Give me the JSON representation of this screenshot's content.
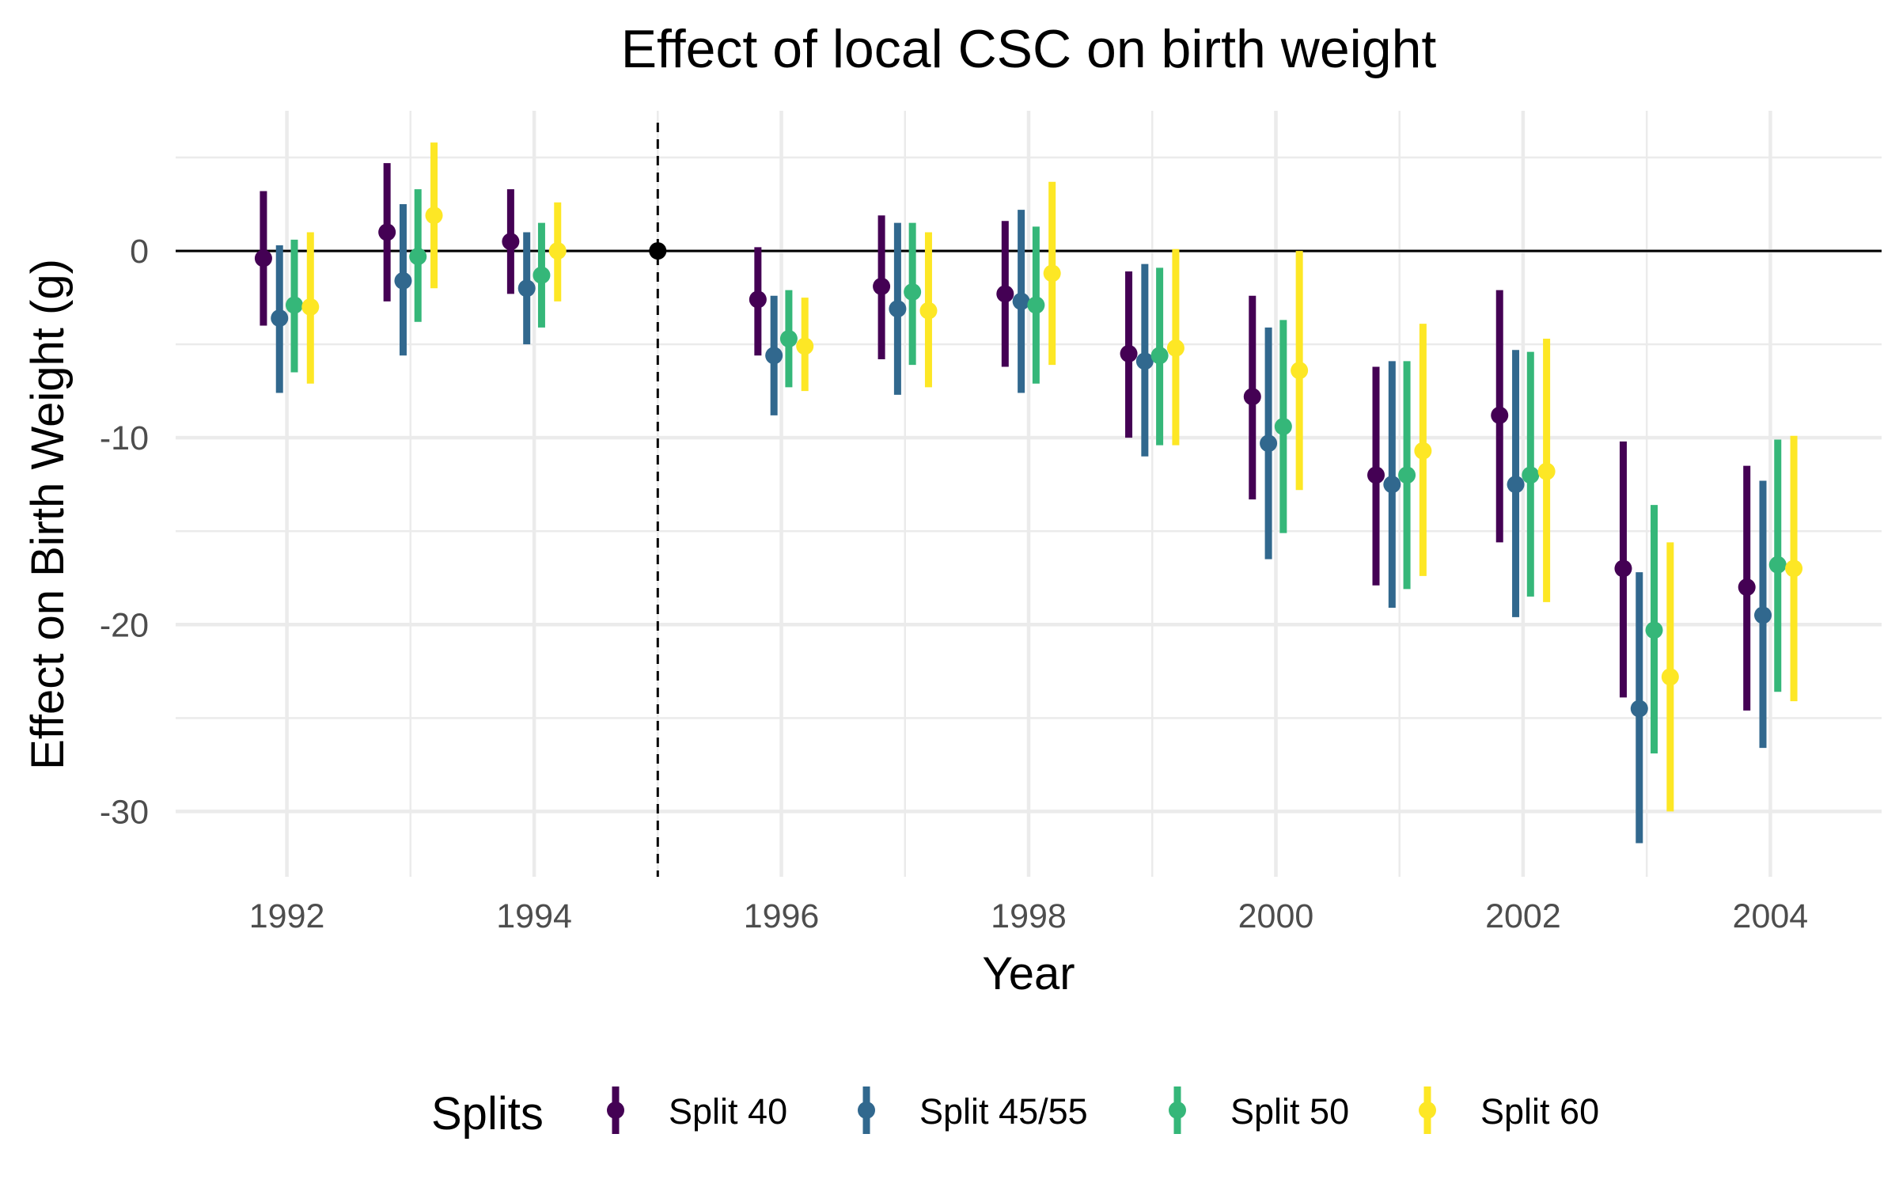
{
  "chart_data": {
    "type": "scatter",
    "title": "Effect of local CSC on birth weight",
    "xlabel": "Year",
    "ylabel": "Effect on Birth Weight (g)",
    "xlim": [
      1991.1,
      2004.9
    ],
    "ylim": [
      -33.5,
      7.5
    ],
    "x_ticks": [
      1992,
      1994,
      1996,
      1998,
      2000,
      2002,
      2004
    ],
    "x_tick_labels": [
      "1992",
      "1994",
      "1996",
      "1998",
      "2000",
      "2002",
      "2004"
    ],
    "y_ticks": [
      -30,
      -20,
      -10,
      0
    ],
    "y_tick_labels": [
      "-30",
      "-20",
      "-10",
      "0"
    ],
    "grid": true,
    "reference_hline": 0,
    "reference_vline": 1995,
    "reference_point": {
      "x": 1995,
      "y": 0
    },
    "legend": {
      "title": "Splits",
      "position": "bottom"
    },
    "series": [
      {
        "name": "Split 40",
        "color": "#440154",
        "offset": -0.19,
        "points": [
          {
            "x": 1992,
            "y": -0.4,
            "lo": -4.0,
            "hi": 3.2
          },
          {
            "x": 1993,
            "y": 1.0,
            "lo": -2.7,
            "hi": 4.7
          },
          {
            "x": 1994,
            "y": 0.5,
            "lo": -2.3,
            "hi": 3.3
          },
          {
            "x": 1996,
            "y": -2.6,
            "lo": -5.6,
            "hi": 0.2
          },
          {
            "x": 1997,
            "y": -1.9,
            "lo": -5.8,
            "hi": 1.9
          },
          {
            "x": 1998,
            "y": -2.3,
            "lo": -6.2,
            "hi": 1.6
          },
          {
            "x": 1999,
            "y": -5.5,
            "lo": -10.0,
            "hi": -1.1
          },
          {
            "x": 2000,
            "y": -7.8,
            "lo": -13.3,
            "hi": -2.4
          },
          {
            "x": 2001,
            "y": -12.0,
            "lo": -17.9,
            "hi": -6.2
          },
          {
            "x": 2002,
            "y": -8.8,
            "lo": -15.6,
            "hi": -2.1
          },
          {
            "x": 2003,
            "y": -17.0,
            "lo": -23.9,
            "hi": -10.2
          },
          {
            "x": 2004,
            "y": -18.0,
            "lo": -24.6,
            "hi": -11.5
          }
        ]
      },
      {
        "name": "Split 45/55",
        "color": "#31688e",
        "offset": -0.06,
        "points": [
          {
            "x": 1992,
            "y": -3.6,
            "lo": -7.6,
            "hi": 0.3
          },
          {
            "x": 1993,
            "y": -1.6,
            "lo": -5.6,
            "hi": 2.5
          },
          {
            "x": 1994,
            "y": -2.0,
            "lo": -5.0,
            "hi": 1.0
          },
          {
            "x": 1996,
            "y": -5.6,
            "lo": -8.8,
            "hi": -2.4
          },
          {
            "x": 1997,
            "y": -3.1,
            "lo": -7.7,
            "hi": 1.5
          },
          {
            "x": 1998,
            "y": -2.7,
            "lo": -7.6,
            "hi": 2.2
          },
          {
            "x": 1999,
            "y": -5.9,
            "lo": -11.0,
            "hi": -0.7
          },
          {
            "x": 2000,
            "y": -10.3,
            "lo": -16.5,
            "hi": -4.1
          },
          {
            "x": 2001,
            "y": -12.5,
            "lo": -19.1,
            "hi": -5.9
          },
          {
            "x": 2002,
            "y": -12.5,
            "lo": -19.6,
            "hi": -5.3
          },
          {
            "x": 2003,
            "y": -24.5,
            "lo": -31.7,
            "hi": -17.2
          },
          {
            "x": 2004,
            "y": -19.5,
            "lo": -26.6,
            "hi": -12.3
          }
        ]
      },
      {
        "name": "Split 50",
        "color": "#35b779",
        "offset": 0.06,
        "points": [
          {
            "x": 1992,
            "y": -2.9,
            "lo": -6.5,
            "hi": 0.6
          },
          {
            "x": 1993,
            "y": -0.3,
            "lo": -3.8,
            "hi": 3.3
          },
          {
            "x": 1994,
            "y": -1.3,
            "lo": -4.1,
            "hi": 1.5
          },
          {
            "x": 1996,
            "y": -4.7,
            "lo": -7.3,
            "hi": -2.1
          },
          {
            "x": 1997,
            "y": -2.2,
            "lo": -6.1,
            "hi": 1.5
          },
          {
            "x": 1998,
            "y": -2.9,
            "lo": -7.1,
            "hi": 1.3
          },
          {
            "x": 1999,
            "y": -5.6,
            "lo": -10.4,
            "hi": -0.9
          },
          {
            "x": 2000,
            "y": -9.4,
            "lo": -15.1,
            "hi": -3.7
          },
          {
            "x": 2001,
            "y": -12.0,
            "lo": -18.1,
            "hi": -5.9
          },
          {
            "x": 2002,
            "y": -12.0,
            "lo": -18.5,
            "hi": -5.4
          },
          {
            "x": 2003,
            "y": -20.3,
            "lo": -26.9,
            "hi": -13.6
          },
          {
            "x": 2004,
            "y": -16.8,
            "lo": -23.6,
            "hi": -10.1
          }
        ]
      },
      {
        "name": "Split 60",
        "color": "#fde725",
        "offset": 0.19,
        "points": [
          {
            "x": 1992,
            "y": -3.0,
            "lo": -7.1,
            "hi": 1.0
          },
          {
            "x": 1993,
            "y": 1.9,
            "lo": -2.0,
            "hi": 5.8
          },
          {
            "x": 1994,
            "y": 0.0,
            "lo": -2.7,
            "hi": 2.6
          },
          {
            "x": 1996,
            "y": -5.1,
            "lo": -7.5,
            "hi": -2.5
          },
          {
            "x": 1997,
            "y": -3.2,
            "lo": -7.3,
            "hi": 1.0
          },
          {
            "x": 1998,
            "y": -1.2,
            "lo": -6.1,
            "hi": 3.7
          },
          {
            "x": 1999,
            "y": -5.2,
            "lo": -10.4,
            "hi": 0.1
          },
          {
            "x": 2000,
            "y": -6.4,
            "lo": -12.8,
            "hi": 0.0
          },
          {
            "x": 2001,
            "y": -10.7,
            "lo": -17.4,
            "hi": -3.9
          },
          {
            "x": 2002,
            "y": -11.8,
            "lo": -18.8,
            "hi": -4.7
          },
          {
            "x": 2003,
            "y": -22.8,
            "lo": -30.0,
            "hi": -15.6
          },
          {
            "x": 2004,
            "y": -17.0,
            "lo": -24.1,
            "hi": -9.9
          }
        ]
      }
    ]
  }
}
